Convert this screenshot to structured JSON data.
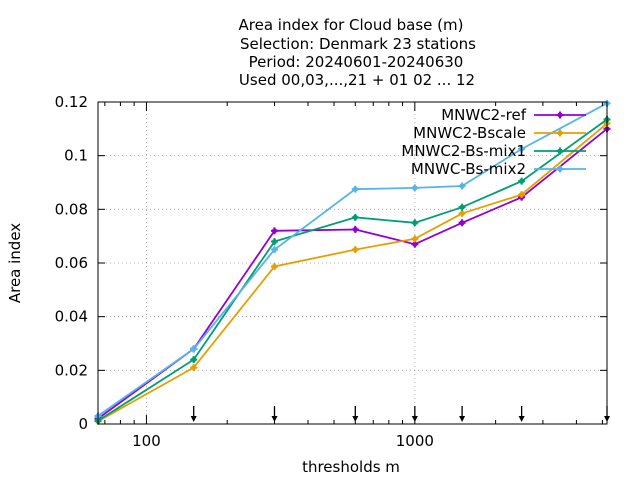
{
  "chart_data": {
    "type": "line",
    "title_lines": [
      "Area index  for Cloud base (m)",
      "Selection: Denmark     23 stations",
      "Period: 20240601-20240630",
      "Used 00,03,...,21 + 01 02 ... 12"
    ],
    "xlabel": "thresholds m",
    "ylabel": "Area index",
    "xscale": "log",
    "xlim": [
      66,
      5200
    ],
    "ylim": [
      0,
      0.12
    ],
    "x_ticks": [
      100,
      1000
    ],
    "x_tick_labels": [
      "100",
      "1000"
    ],
    "y_ticks": [
      0,
      0.02,
      0.04,
      0.06,
      0.08,
      0.1,
      0.12
    ],
    "y_tick_labels": [
      "0",
      "0.02",
      "0.04",
      "0.06",
      "0.08",
      "0.1",
      "0.12"
    ],
    "threshold_markers": [
      150,
      300,
      600,
      1000,
      1500,
      2500,
      5200
    ],
    "grid": true,
    "legend_position": "top-right",
    "x": [
      66,
      150,
      300,
      600,
      1000,
      1500,
      2500,
      5200
    ],
    "series": [
      {
        "name": "MNWC2-ref",
        "color": "#9400d3",
        "marker": "plus",
        "values": [
          0.002,
          0.028,
          0.072,
          0.0725,
          0.067,
          0.075,
          0.0845,
          0.11
        ]
      },
      {
        "name": "MNWC2-Bscale",
        "color": "#e69f00",
        "marker": "plus",
        "values": [
          0.001,
          0.021,
          0.0587,
          0.065,
          0.069,
          0.0785,
          0.0855,
          0.112
        ]
      },
      {
        "name": "MNWC2-Bs-mix1",
        "color": "#009e73",
        "marker": "plus",
        "values": [
          0.0012,
          0.024,
          0.068,
          0.077,
          0.075,
          0.0808,
          0.0905,
          0.1135
        ]
      },
      {
        "name": "MNWC-Bs-mix2",
        "color": "#56b4e9",
        "marker": "plus",
        "values": [
          0.003,
          0.028,
          0.065,
          0.0875,
          0.088,
          0.0887,
          0.1025,
          0.1195
        ]
      }
    ]
  }
}
